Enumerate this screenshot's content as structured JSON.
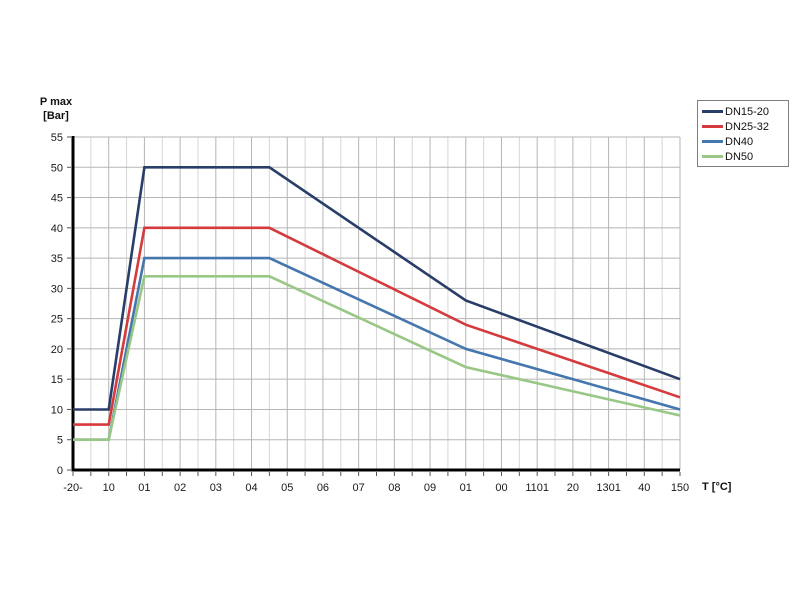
{
  "chart_data": {
    "type": "line",
    "title": "",
    "xlabel": "T [°C]",
    "ylabel_lines": [
      "P max",
      "[Bar]"
    ],
    "xlim": [
      -20,
      150
    ],
    "ylim": [
      0,
      55
    ],
    "x_tick_step": 10,
    "x_minor_step": 5,
    "y_tick_step": 5,
    "grid": true,
    "legend_position": "top-right",
    "x_tick_labels": [
      "-20-",
      "10",
      "01",
      "02",
      "03",
      "04",
      "05",
      "06",
      "07",
      "08",
      "09",
      "01",
      "00",
      "1101",
      "20",
      "1301",
      "40",
      "150"
    ],
    "y_tick_labels": [
      "0",
      "5",
      "10",
      "15",
      "20",
      "25",
      "30",
      "35",
      "40",
      "45",
      "50",
      "55"
    ],
    "series": [
      {
        "name": "DN15-20",
        "color": "#283D68",
        "points": [
          [
            -20,
            10
          ],
          [
            -10,
            10
          ],
          [
            0,
            50
          ],
          [
            35,
            50
          ],
          [
            90,
            28
          ],
          [
            150,
            15
          ]
        ]
      },
      {
        "name": "DN25-32",
        "color": "#D53A3C",
        "points": [
          [
            -20,
            7.5
          ],
          [
            -10,
            7.5
          ],
          [
            0,
            40
          ],
          [
            35,
            40
          ],
          [
            90,
            24
          ],
          [
            150,
            12
          ]
        ]
      },
      {
        "name": "DN40",
        "color": "#4576AD",
        "points": [
          [
            -20,
            5
          ],
          [
            -10,
            5
          ],
          [
            0,
            35
          ],
          [
            35,
            35
          ],
          [
            90,
            20
          ],
          [
            150,
            10
          ]
        ]
      },
      {
        "name": "DN50",
        "color": "#99C786",
        "points": [
          [
            -20,
            5
          ],
          [
            -10,
            5
          ],
          [
            0,
            32
          ],
          [
            35,
            32
          ],
          [
            90,
            17
          ],
          [
            150,
            9
          ]
        ]
      }
    ],
    "colors": {
      "background": "#ffffff",
      "axis": "#000000",
      "grid_major": "#b5b5b5",
      "grid_minor": "#d6d6d6",
      "tick": "#555555",
      "text": "#1a1a1a",
      "legend_border": "#7f7f7f"
    }
  }
}
